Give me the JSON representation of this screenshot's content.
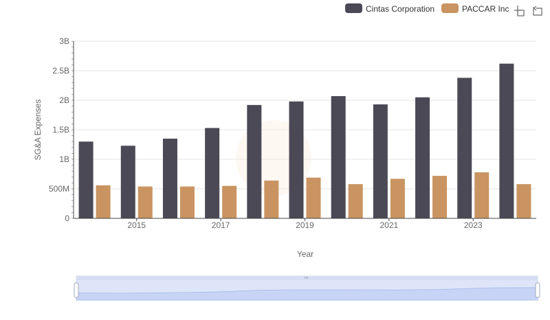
{
  "chart_data": {
    "type": "bar",
    "xlabel": "Year",
    "ylabel": "SG&A Expenses",
    "ylim": [
      0,
      3000000000
    ],
    "y_ticks": [
      {
        "value": 0,
        "label": "0"
      },
      {
        "value": 500000000,
        "label": "500M"
      },
      {
        "value": 1000000000,
        "label": "1B"
      },
      {
        "value": 1500000000,
        "label": "1.5B"
      },
      {
        "value": 2000000000,
        "label": "2B"
      },
      {
        "value": 2500000000,
        "label": "2.5B"
      },
      {
        "value": 3000000000,
        "label": "3B"
      }
    ],
    "categories": [
      "2014",
      "2015",
      "2016",
      "2017",
      "2018",
      "2019",
      "2020",
      "2021",
      "2022",
      "2023",
      "2024"
    ],
    "x_tick_labels": [
      "2015",
      "2017",
      "2019",
      "2021",
      "2023"
    ],
    "grid": true,
    "legend_position": "top-right",
    "series": [
      {
        "name": "Cintas Corporation",
        "color": "#4a4955",
        "values": [
          1300000000,
          1230000000,
          1350000000,
          1530000000,
          1920000000,
          1980000000,
          2070000000,
          1930000000,
          2050000000,
          2380000000,
          2620000000
        ]
      },
      {
        "name": "PACCAR Inc",
        "color": "#c99461",
        "values": [
          560000000,
          540000000,
          540000000,
          550000000,
          640000000,
          690000000,
          580000000,
          670000000,
          720000000,
          780000000,
          580000000
        ]
      }
    ]
  },
  "toolbar": {
    "zoom_icon": "zoom-area-icon",
    "restore_icon": "restore-icon"
  },
  "data_zoom": {
    "range_start": 0,
    "range_end": 1
  }
}
